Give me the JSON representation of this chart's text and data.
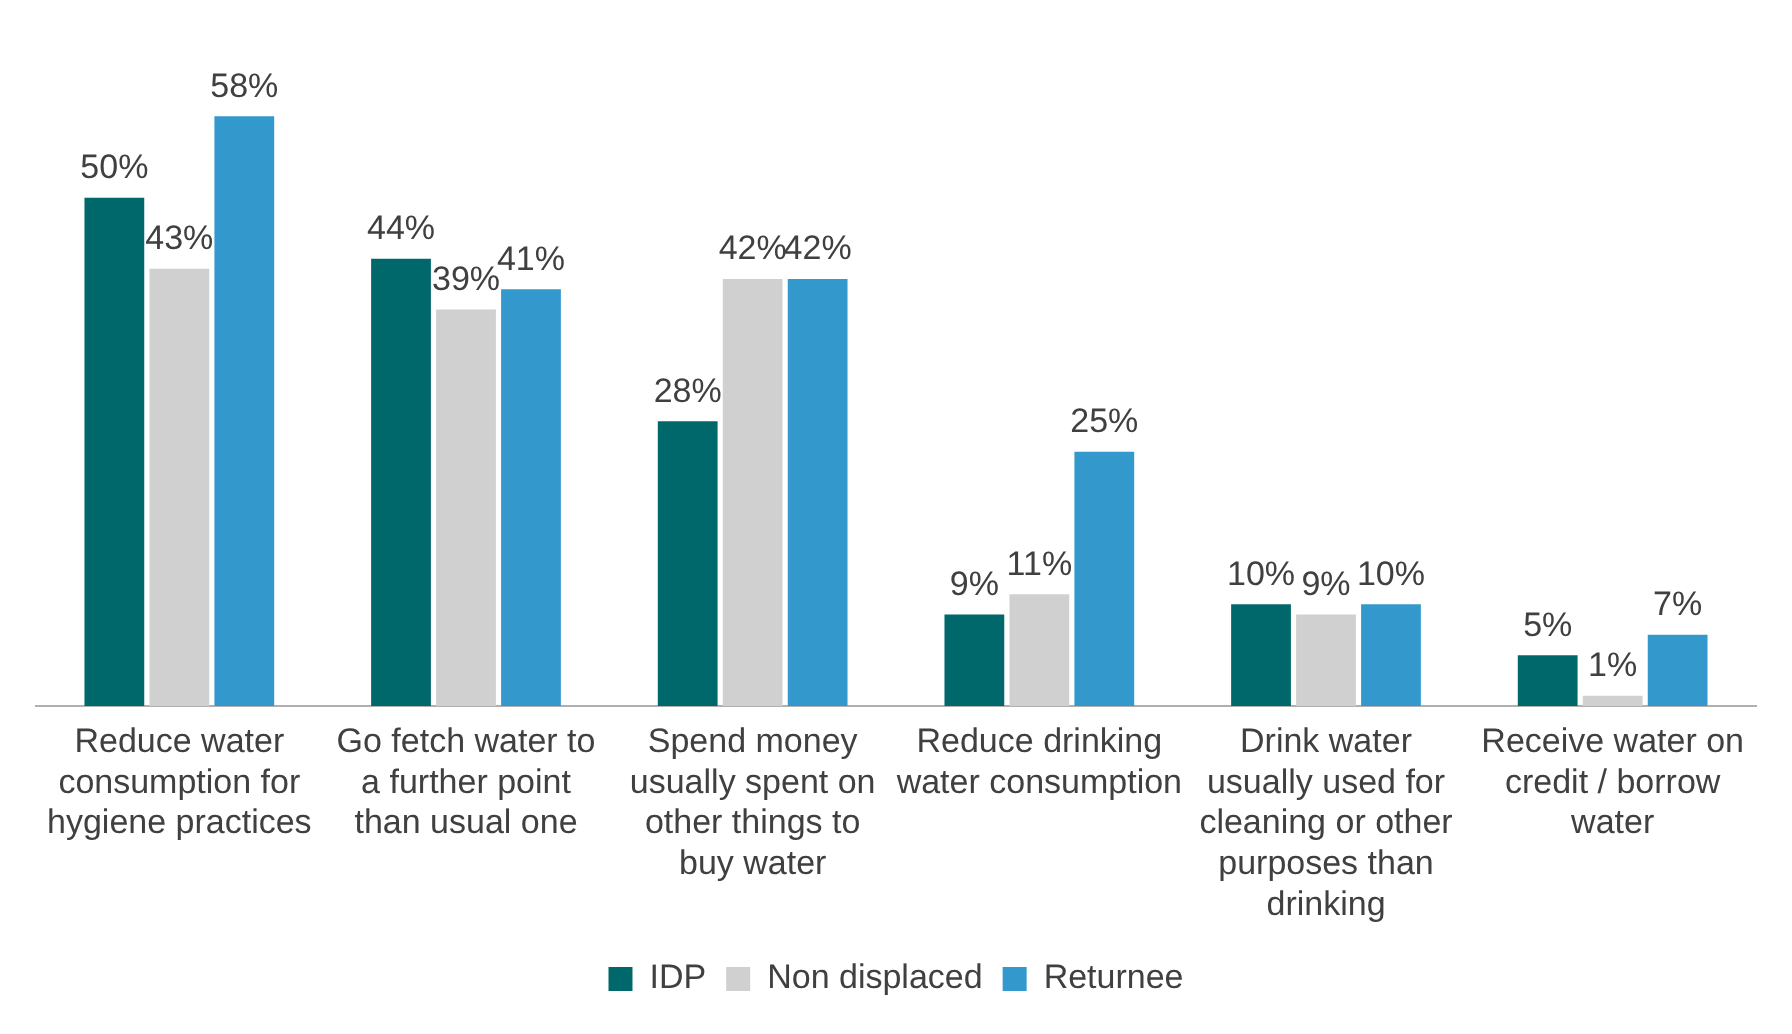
{
  "chart_data": {
    "type": "bar",
    "categories": [
      "Reduce water consumption for hygiene practices",
      "Go fetch water to a further point than usual one",
      "Spend money usually spent on other things to buy water",
      "Reduce drinking water consumption",
      "Drink water usually used for cleaning or other purposes than drinking",
      "Receive water on credit / borrow water"
    ],
    "series": [
      {
        "name": "IDP",
        "color": "#00686a",
        "values": [
          50,
          44,
          28,
          9,
          10,
          5
        ],
        "value_labels": [
          "50%",
          "44%",
          "28%",
          "9%",
          "10%",
          "5%"
        ]
      },
      {
        "name": "Non displaced",
        "color": "#d0d0d0",
        "values": [
          43,
          39,
          42,
          11,
          9,
          1
        ],
        "value_labels": [
          "43%",
          "39%",
          "42%",
          "11%",
          "9%",
          "1%"
        ]
      },
      {
        "name": "Returnee",
        "color": "#3399cc",
        "values": [
          58,
          41,
          42,
          25,
          10,
          7
        ],
        "value_labels": [
          "58%",
          "41%",
          "42%",
          "25%",
          "10%",
          "7%"
        ]
      }
    ],
    "legend": "bottom",
    "grid": false
  }
}
